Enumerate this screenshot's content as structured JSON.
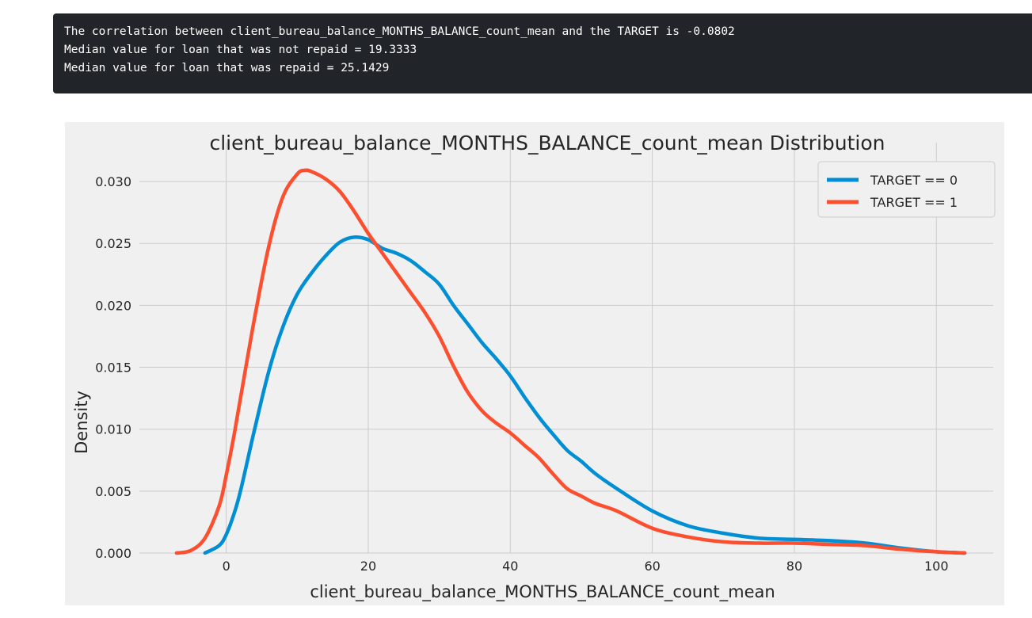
{
  "output": {
    "lines": [
      "The correlation between client_bureau_balance_MONTHS_BALANCE_count_mean and the TARGET is -0.0802",
      "Median value for loan that was not repaid = 19.3333",
      "Median value for loan that was repaid = 25.1429"
    ]
  },
  "chart_data": {
    "type": "line",
    "title": "client_bureau_balance_MONTHS_BALANCE_count_mean Distribution",
    "xlabel": "client_bureau_balance_MONTHS_BALANCE_count_mean",
    "ylabel": "Density",
    "xlim": [
      -10,
      108
    ],
    "ylim": [
      0,
      0.0325
    ],
    "xticks": [
      0,
      20,
      40,
      60,
      80,
      100
    ],
    "yticks": [
      0.0,
      0.005,
      0.01,
      0.015,
      0.02,
      0.025,
      0.03
    ],
    "ytick_labels": [
      "0.000",
      "0.005",
      "0.010",
      "0.015",
      "0.020",
      "0.025",
      "0.030"
    ],
    "grid": true,
    "legend_position": "top-right",
    "series": [
      {
        "name": "TARGET == 0",
        "color": "#008fd5",
        "x": [
          -3,
          -1,
          0,
          1,
          2,
          4,
          6,
          8,
          10,
          12,
          14,
          16,
          18,
          20,
          22,
          24,
          26,
          28,
          30,
          32,
          34,
          36,
          38,
          40,
          42,
          44,
          46,
          48,
          50,
          52,
          55,
          60,
          65,
          70,
          75,
          80,
          85,
          90,
          95,
          100,
          104
        ],
        "y": [
          0.0,
          0.0006,
          0.0015,
          0.003,
          0.005,
          0.01,
          0.0147,
          0.0183,
          0.0209,
          0.0226,
          0.024,
          0.0251,
          0.0255,
          0.0253,
          0.0246,
          0.0242,
          0.0236,
          0.0227,
          0.0217,
          0.02,
          0.0185,
          0.017,
          0.0157,
          0.0143,
          0.0126,
          0.011,
          0.0096,
          0.0083,
          0.0074,
          0.0064,
          0.0052,
          0.0034,
          0.0022,
          0.0016,
          0.0012,
          0.0011,
          0.001,
          0.0008,
          0.0004,
          0.0001,
          0.0
        ]
      },
      {
        "name": "TARGET == 1",
        "color": "#fc4f30",
        "x": [
          -7,
          -5,
          -3,
          -1,
          0,
          1,
          2,
          4,
          6,
          8,
          10,
          11,
          12,
          14,
          16,
          18,
          20,
          22,
          24,
          26,
          28,
          30,
          32,
          34,
          36,
          38,
          40,
          42,
          44,
          46,
          48,
          50,
          52,
          55,
          60,
          65,
          70,
          75,
          80,
          85,
          90,
          95,
          100,
          104
        ],
        "y": [
          0.0,
          0.0002,
          0.0012,
          0.0038,
          0.0063,
          0.0092,
          0.0125,
          0.019,
          0.0248,
          0.0288,
          0.0306,
          0.0309,
          0.0308,
          0.0302,
          0.0292,
          0.0276,
          0.0258,
          0.0242,
          0.0226,
          0.021,
          0.0194,
          0.0175,
          0.0151,
          0.013,
          0.0115,
          0.0105,
          0.0097,
          0.0087,
          0.0077,
          0.0064,
          0.0052,
          0.0046,
          0.004,
          0.0034,
          0.002,
          0.0013,
          0.0009,
          0.0008,
          0.0008,
          0.0007,
          0.0006,
          0.0003,
          0.0001,
          0.0
        ]
      }
    ]
  }
}
